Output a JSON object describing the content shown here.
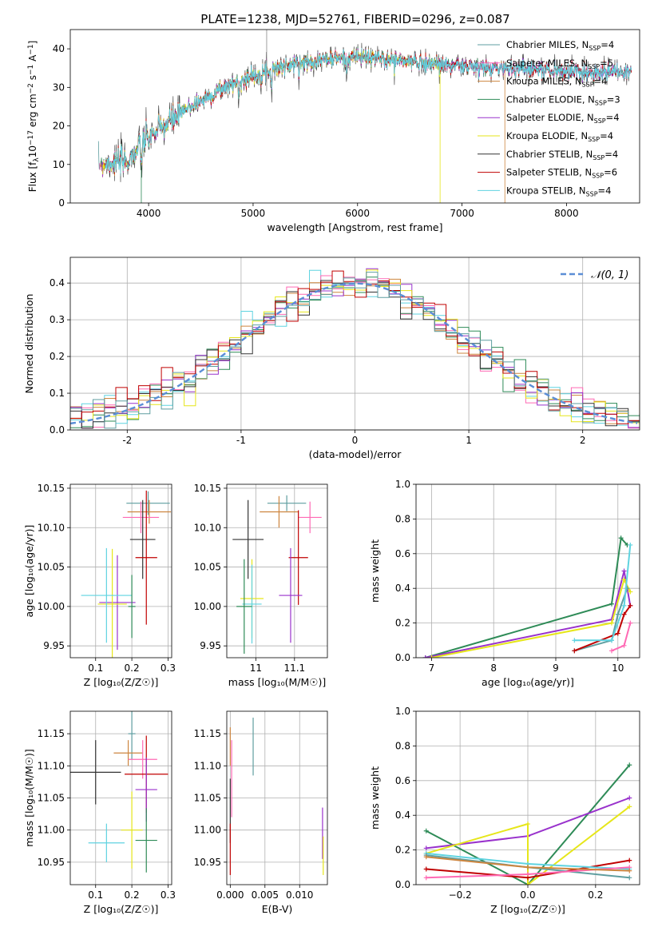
{
  "figure_title": "PLATE=1238, MJD=52761, FIBERID=0296, z=0.087",
  "colors": [
    "#5f9ea0",
    "#ff69b4",
    "#cd853f",
    "#2e8b57",
    "#9932cc",
    "#e6e61a",
    "#333333",
    "#c00000",
    "#5fd3e0"
  ],
  "legend_labels": [
    {
      "prefix": "Chabrier MILES, N",
      "sub": "SSP",
      "suffix": "=4"
    },
    {
      "prefix": "Salpeter MILES, N",
      "sub": "SSP",
      "suffix": "=5"
    },
    {
      "prefix": "Kroupa MILES, N",
      "sub": "SSP",
      "suffix": "=4"
    },
    {
      "prefix": "Chabrier ELODIE, N",
      "sub": "SSP",
      "suffix": "=3"
    },
    {
      "prefix": "Salpeter ELODIE, N",
      "sub": "SSP",
      "suffix": "=4"
    },
    {
      "prefix": "Kroupa ELODIE, N",
      "sub": "SSP",
      "suffix": "=4"
    },
    {
      "prefix": "Chabrier STELIB, N",
      "sub": "SSP",
      "suffix": "=4"
    },
    {
      "prefix": "Salpeter STELIB, N",
      "sub": "SSP",
      "suffix": "=6"
    },
    {
      "prefix": "Kroupa STELIB, N",
      "sub": "SSP",
      "suffix": "=4"
    }
  ],
  "chart_data": [
    {
      "id": "spectrum",
      "type": "line",
      "xlabel": "wavelength [Angstrom, rest frame]",
      "ylabel_parts": {
        "a": "Flux [f",
        "sub": "λ",
        "b": "10",
        "sup1": "−17",
        "c": " erg cm",
        "sup2": "−2",
        "d": " s",
        "sup3": "−1",
        "e": " A",
        "sup4": "−1",
        "f": "]"
      },
      "xlim": [
        3250,
        8700
      ],
      "ylim": [
        0,
        45
      ],
      "xticks": [
        4000,
        5000,
        6000,
        7000,
        8000
      ],
      "yticks": [
        0,
        10,
        20,
        30,
        40
      ],
      "continuum_knots": {
        "x": [
          3500,
          3800,
          4000,
          4400,
          4800,
          5200,
          5600,
          6000,
          6400,
          6800,
          7200,
          7600,
          8000,
          8500
        ],
        "y": [
          10,
          11,
          17,
          25,
          31,
          35,
          37,
          38,
          37,
          36,
          35,
          35,
          34,
          34
        ]
      },
      "absorption_lines": [
        3933,
        4861,
        5175,
        5893
      ],
      "grid": false,
      "legend": "top-right"
    },
    {
      "id": "residuals",
      "type": "step-histogram",
      "xlabel": "(data-model)/error",
      "ylabel": "Normed distribution",
      "xlim": [
        -2.5,
        2.5
      ],
      "ylim": [
        0,
        0.47
      ],
      "xticks": [
        -2,
        -1,
        0,
        1,
        2
      ],
      "yticks": [
        0.0,
        0.1,
        0.2,
        0.3,
        0.4
      ],
      "bin_width": 0.1,
      "reference_curve": "N(0,1)",
      "legend_label": "𝒩(0, 1)",
      "grid": true,
      "legend": "top-right"
    },
    {
      "id": "age_vs_Z",
      "type": "errorbar",
      "xlabel": "Z [log₁₀(Z/Z☉)]",
      "ylabel": "age  [log₁₀(age/yr)]",
      "xlim": [
        0.03,
        0.31
      ],
      "ylim": [
        9.935,
        10.155
      ],
      "xticks": [
        0.1,
        0.2,
        0.3
      ],
      "yticks": [
        9.95,
        10.0,
        10.05,
        10.1,
        10.15
      ],
      "points": [
        {
          "x": 0.245,
          "xerr": 0.06,
          "y": 10.131,
          "yerr": 0.015
        },
        {
          "x": 0.248,
          "xerr": 0.06,
          "y": 10.12,
          "yerr": 0.015
        },
        {
          "x": 0.225,
          "xerr": 0.05,
          "y": 10.113,
          "yerr": 0.02
        },
        {
          "x": 0.23,
          "xerr": 0.035,
          "y": 10.085,
          "yerr": 0.05
        },
        {
          "x": 0.24,
          "xerr": 0.03,
          "y": 10.062,
          "yerr": 0.085
        },
        {
          "x": 0.16,
          "xerr": 0.05,
          "y": 10.005,
          "yerr": 0.06
        },
        {
          "x": 0.146,
          "xerr": 0.04,
          "y": 10.003,
          "yerr": 0.07
        },
        {
          "x": 0.13,
          "xerr": 0.07,
          "y": 10.014,
          "yerr": 0.06
        },
        {
          "x": 0.2,
          "xerr": 0.01,
          "y": 10.0,
          "yerr": 0.04
        }
      ],
      "grid": true
    },
    {
      "id": "age_vs_mass",
      "type": "errorbar",
      "xlabel": "mass [log₁₀(M/M☉)]",
      "ylabel": "",
      "xlim": [
        10.925,
        11.185
      ],
      "ylim": [
        9.935,
        10.155
      ],
      "xticks": [
        11.0,
        11.1
      ],
      "yticks": [
        9.95,
        10.0,
        10.05,
        10.1,
        10.15
      ],
      "points": [
        {
          "x": 11.08,
          "xerr": 0.05,
          "y": 10.131,
          "yerr": 0.01
        },
        {
          "x": 11.06,
          "xerr": 0.05,
          "y": 10.12,
          "yerr": 0.02
        },
        {
          "x": 11.14,
          "xerr": 0.03,
          "y": 10.113,
          "yerr": 0.02
        },
        {
          "x": 10.98,
          "xerr": 0.04,
          "y": 10.085,
          "yerr": 0.05
        },
        {
          "x": 11.11,
          "xerr": 0.025,
          "y": 10.062,
          "yerr": 0.06
        },
        {
          "x": 11.09,
          "xerr": 0.03,
          "y": 10.014,
          "yerr": 0.06
        },
        {
          "x": 10.99,
          "xerr": 0.03,
          "y": 10.01,
          "yerr": 0.05
        },
        {
          "x": 10.99,
          "xerr": 0.025,
          "y": 10.003,
          "yerr": 0.05
        },
        {
          "x": 10.97,
          "xerr": 0.02,
          "y": 10.0,
          "yerr": 0.06
        }
      ],
      "grid": true
    },
    {
      "id": "mass_weight_vs_age",
      "type": "line",
      "xlabel": "age  [log₁₀(age/yr)]",
      "ylabel": "mass weight",
      "xlim": [
        6.75,
        10.35
      ],
      "ylim": [
        0,
        1.0
      ],
      "xticks": [
        7,
        8,
        9,
        10
      ],
      "yticks": [
        0.0,
        0.2,
        0.4,
        0.6,
        0.8,
        1.0
      ],
      "series": [
        {
          "x": [
            6.9,
            9.9,
            10.05,
            10.15
          ],
          "y": [
            0.0,
            0.31,
            0.69,
            0.65
          ],
          "color_index": 3
        },
        {
          "x": [
            6.9,
            9.9,
            10.1,
            10.2
          ],
          "y": [
            0.0,
            0.22,
            0.5,
            0.3
          ],
          "color_index": 4
        },
        {
          "x": [
            7.0,
            9.9,
            10.1,
            10.2
          ],
          "y": [
            0.0,
            0.2,
            0.45,
            0.38
          ],
          "color_index": 5
        },
        {
          "x": [
            9.3,
            9.9,
            10.0,
            10.15
          ],
          "y": [
            0.04,
            0.1,
            0.25,
            0.4
          ],
          "color_index": 0
        },
        {
          "x": [
            9.3,
            10.0,
            10.1,
            10.2
          ],
          "y": [
            0.04,
            0.14,
            0.25,
            0.3
          ],
          "color_index": 7
        },
        {
          "x": [
            9.3,
            9.9,
            10.1,
            10.2
          ],
          "y": [
            0.1,
            0.1,
            0.3,
            0.65
          ],
          "color_index": 8
        },
        {
          "x": [
            9.9,
            10.1,
            10.2
          ],
          "y": [
            0.04,
            0.07,
            0.2
          ],
          "color_index": 1
        }
      ],
      "grid": true
    },
    {
      "id": "mass_vs_Z",
      "type": "errorbar",
      "xlabel": "Z [log₁₀(Z/Z☉)]",
      "ylabel": "mass [log₁₀(M/M☉)]",
      "xlim": [
        0.03,
        0.31
      ],
      "ylim": [
        10.915,
        11.185
      ],
      "xticks": [
        0.1,
        0.2,
        0.3
      ],
      "yticks": [
        10.95,
        11.0,
        11.05,
        11.1,
        11.15
      ],
      "points": [
        {
          "x": 0.2,
          "xerr": 0.01,
          "y": 11.15,
          "yerr": 0.04
        },
        {
          "x": 0.19,
          "xerr": 0.04,
          "y": 11.12,
          "yerr": 0.02
        },
        {
          "x": 0.23,
          "xerr": 0.04,
          "y": 11.11,
          "yerr": 0.03
        },
        {
          "x": 0.1,
          "xerr": 0.07,
          "y": 11.09,
          "yerr": 0.05
        },
        {
          "x": 0.24,
          "xerr": 0.06,
          "y": 11.087,
          "yerr": 0.06
        },
        {
          "x": 0.24,
          "xerr": 0.03,
          "y": 11.063,
          "yerr": 0.05
        },
        {
          "x": 0.2,
          "xerr": 0.03,
          "y": 11.0,
          "yerr": 0.06
        },
        {
          "x": 0.13,
          "xerr": 0.05,
          "y": 10.98,
          "yerr": 0.03
        },
        {
          "x": 0.24,
          "xerr": 0.03,
          "y": 10.984,
          "yerr": 0.05
        }
      ],
      "grid": true
    },
    {
      "id": "mass_vs_ebv",
      "type": "errorbar",
      "xlabel": "E(B-V)",
      "ylabel": "",
      "xlim": [
        -0.0005,
        0.014
      ],
      "ylim": [
        10.915,
        11.185
      ],
      "xticks": [
        0.0,
        0.005,
        0.01
      ],
      "xtick_labels": [
        "0.000",
        "0.005",
        "0.010"
      ],
      "yticks": [
        10.95,
        11.0,
        11.05,
        11.1,
        11.15
      ],
      "points": [
        {
          "x": 0.0033,
          "xerr": 0.0,
          "y": 11.13,
          "yerr": 0.045
        },
        {
          "x": 0.0,
          "xerr": 0.0,
          "y": 11.13,
          "yerr": 0.03
        },
        {
          "x": 0.0002,
          "xerr": 0.0,
          "y": 11.08,
          "yerr": 0.06
        },
        {
          "x": 0.0,
          "xerr": 0.0,
          "y": 11.03,
          "yerr": 0.05
        },
        {
          "x": 0.0,
          "xerr": 0.0,
          "y": 10.97,
          "yerr": 0.04
        },
        {
          "x": 0.0133,
          "xerr": 0.0,
          "y": 10.995,
          "yerr": 0.04
        },
        {
          "x": 0.0134,
          "xerr": 0.0,
          "y": 10.96,
          "yerr": 0.03
        }
      ],
      "grid": true
    },
    {
      "id": "mass_weight_vs_Z",
      "type": "line",
      "xlabel": "Z [log₁₀(Z/Z☉)]",
      "ylabel": "mass weight",
      "xlim": [
        -0.33,
        0.33
      ],
      "ylim": [
        0,
        1.0
      ],
      "xticks": [
        -0.2,
        0.0,
        0.2
      ],
      "xtick_labels": [
        "−0.2",
        "0.0",
        "0.2"
      ],
      "yticks": [
        0.0,
        0.2,
        0.4,
        0.6,
        0.8,
        1.0
      ],
      "series": [
        {
          "x": [
            -0.3,
            0.0,
            0.3
          ],
          "y": [
            0.31,
            0.0,
            0.69
          ],
          "color_index": 3
        },
        {
          "x": [
            -0.3,
            0.0,
            0.3
          ],
          "y": [
            0.21,
            0.28,
            0.5
          ],
          "color_index": 4
        },
        {
          "x": [
            -0.3,
            0.0,
            0.0,
            0.3
          ],
          "y": [
            0.18,
            0.35,
            0.0,
            0.45
          ],
          "color_index": 5
        },
        {
          "x": [
            -0.3,
            0.0,
            0.3
          ],
          "y": [
            0.09,
            0.04,
            0.14
          ],
          "color_index": 7
        },
        {
          "x": [
            -0.3,
            0.0,
            0.3
          ],
          "y": [
            0.18,
            0.12,
            0.09
          ],
          "color_index": 8
        },
        {
          "x": [
            -0.3,
            0.0,
            0.3
          ],
          "y": [
            0.17,
            0.1,
            0.04
          ],
          "color_index": 0
        },
        {
          "x": [
            -0.3,
            0.0,
            0.3
          ],
          "y": [
            0.04,
            0.06,
            0.1
          ],
          "color_index": 1
        },
        {
          "x": [
            -0.3,
            0.0,
            0.3
          ],
          "y": [
            0.16,
            0.1,
            0.08
          ],
          "color_index": 2
        }
      ],
      "grid": true
    }
  ]
}
